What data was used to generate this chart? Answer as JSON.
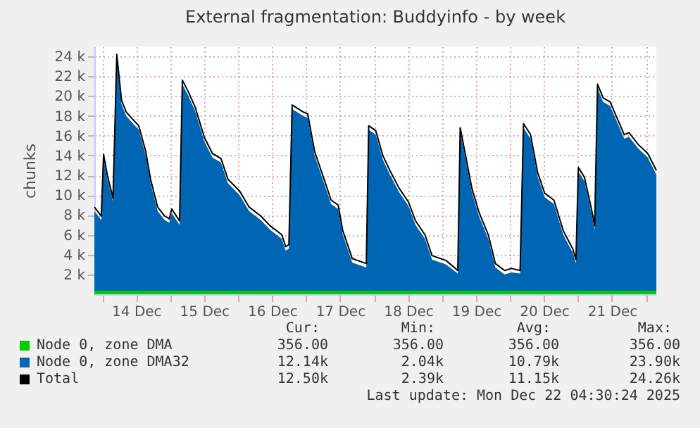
{
  "chart_data": {
    "type": "area",
    "title": "External fragmentation: Buddyinfo - by week",
    "ylabel": "chunks",
    "grid": true,
    "legend": "bottom",
    "x": [
      "2025-12-13T21:15",
      "2025-12-13T23:42",
      "2025-12-14T00:30",
      "2025-12-14T01:50",
      "2025-12-14T03:50",
      "2025-12-14T05:10",
      "2025-12-14T06:50",
      "2025-12-14T08:27",
      "2025-12-14T11:17",
      "2025-12-14T12:55",
      "2025-12-14T15:24",
      "2025-12-14T17:06",
      "2025-12-14T19:35",
      "2025-12-14T22:04",
      "2025-12-14T23:42",
      "2025-12-15T00:33",
      "2025-12-15T03:20",
      "2025-12-15T04:19",
      "2025-12-15T06:18",
      "2025-12-15T08:48",
      "2025-12-15T12:07",
      "2025-12-15T14:57",
      "2025-12-15T17:56",
      "2025-12-15T20:25",
      "2025-12-16T00:33",
      "2025-12-16T03:52",
      "2025-12-16T08:00",
      "2025-12-16T11:20",
      "2025-12-16T15:27",
      "2025-12-16T16:48",
      "2025-12-16T17:56",
      "2025-12-16T19:05",
      "2025-12-16T22:54",
      "2025-12-17T00:33",
      "2025-12-17T03:02",
      "2025-12-17T06:21",
      "2025-12-17T08:50",
      "2025-12-17T11:19",
      "2025-12-17T12:58",
      "2025-12-17T14:39",
      "2025-12-17T16:18",
      "2025-12-17T21:16",
      "2025-12-17T22:07",
      "2025-12-18T00:36",
      "2025-12-18T03:05",
      "2025-12-18T05:34",
      "2025-12-18T08:51",
      "2025-12-18T12:10",
      "2025-12-18T14:39",
      "2025-12-18T17:59",
      "2025-12-18T20:28",
      "2025-12-19T01:26",
      "2025-12-19T05:34",
      "2025-12-19T06:25",
      "2025-12-19T10:32",
      "2025-12-19T13:01",
      "2025-12-19T16:20",
      "2025-12-19T18:49",
      "2025-12-19T22:06",
      "2025-12-20T00:35",
      "2025-12-20T03:34",
      "2025-12-20T04:46",
      "2025-12-20T07:15",
      "2025-12-20T09:44",
      "2025-12-20T12:13",
      "2025-12-20T15:30",
      "2025-12-20T18:49",
      "2025-12-20T22:08",
      "2025-12-20T23:17",
      "2025-12-21T00:08",
      "2025-12-21T02:17",
      "2025-12-21T04:46",
      "2025-12-21T05:54",
      "2025-12-21T06:54",
      "2025-12-21T08:53",
      "2025-12-21T11:22",
      "2025-12-21T16:20",
      "2025-12-21T18:01",
      "2025-12-21T21:19",
      "2025-12-22T00:38",
      "2025-12-22T03:40"
    ],
    "series": [
      {
        "name": "Node 0, zone DMA",
        "color": "#00cc00",
        "values": [
          356,
          356,
          356,
          356,
          356,
          356,
          356,
          356,
          356,
          356,
          356,
          356,
          356,
          356,
          356,
          356,
          356,
          356,
          356,
          356,
          356,
          356,
          356,
          356,
          356,
          356,
          356,
          356,
          356,
          356,
          356,
          356,
          356,
          356,
          356,
          356,
          356,
          356,
          356,
          356,
          356,
          356,
          356,
          356,
          356,
          356,
          356,
          356,
          356,
          356,
          356,
          356,
          356,
          356,
          356,
          356,
          356,
          356,
          356,
          356,
          356,
          356,
          356,
          356,
          356,
          356,
          356,
          356,
          356,
          356,
          356,
          356,
          356,
          356,
          356,
          356,
          356,
          356,
          356,
          356,
          356
        ]
      },
      {
        "name": "Node 0, zone DMA32",
        "color": "#0066b3",
        "values": [
          8400,
          7500,
          13700,
          11600,
          9400,
          23800,
          19200,
          18000,
          17100,
          16600,
          14000,
          11200,
          8400,
          7500,
          7200,
          8200,
          7000,
          21200,
          20100,
          18500,
          15400,
          13800,
          13300,
          11200,
          10000,
          8400,
          7500,
          6500,
          5600,
          4400,
          4600,
          18700,
          18000,
          17800,
          14000,
          11200,
          9100,
          8600,
          6000,
          4600,
          3200,
          2700,
          16600,
          16100,
          13600,
          12100,
          10300,
          8900,
          7000,
          5600,
          3500,
          3000,
          2100,
          16400,
          10300,
          7900,
          5600,
          2700,
          2000,
          2200,
          2100,
          16800,
          15700,
          11900,
          9800,
          9100,
          6000,
          4200,
          3100,
          12400,
          11400,
          8200,
          6500,
          20800,
          19400,
          19000,
          15700,
          15900,
          14700,
          13800,
          12100
        ]
      },
      {
        "name": "Total",
        "type": "line",
        "color": "#000000",
        "values": [
          8800,
          7900,
          14100,
          12000,
          9700,
          24200,
          19600,
          18400,
          17500,
          17000,
          14400,
          11600,
          8800,
          7900,
          7600,
          8600,
          7400,
          21600,
          20500,
          18900,
          15800,
          14200,
          13700,
          11600,
          10400,
          8800,
          7900,
          6900,
          6000,
          4800,
          5000,
          19100,
          18400,
          18200,
          14400,
          11600,
          9500,
          9000,
          6400,
          5000,
          3600,
          3100,
          17000,
          16500,
          14000,
          12500,
          10700,
          9300,
          7400,
          6000,
          3900,
          3400,
          2400,
          16800,
          10700,
          8300,
          6000,
          3100,
          2400,
          2600,
          2400,
          17200,
          16100,
          12300,
          10200,
          9500,
          6400,
          4600,
          3500,
          12800,
          11800,
          8600,
          6900,
          21200,
          19800,
          19400,
          16100,
          16300,
          15100,
          14200,
          12500
        ]
      }
    ],
    "xlim": [
      "2025-12-13T21:15",
      "2025-12-22T03:40"
    ],
    "xticks": [
      {
        "value": "2025-12-14T00:00",
        "label": null
      },
      {
        "value": "2025-12-14T12:00",
        "label": "14 Dec"
      },
      {
        "value": "2025-12-15T00:00",
        "label": null
      },
      {
        "value": "2025-12-15T12:00",
        "label": "15 Dec"
      },
      {
        "value": "2025-12-16T00:00",
        "label": null
      },
      {
        "value": "2025-12-16T12:00",
        "label": "16 Dec"
      },
      {
        "value": "2025-12-17T00:00",
        "label": null
      },
      {
        "value": "2025-12-17T12:00",
        "label": "17 Dec"
      },
      {
        "value": "2025-12-18T00:00",
        "label": null
      },
      {
        "value": "2025-12-18T12:00",
        "label": "18 Dec"
      },
      {
        "value": "2025-12-19T00:00",
        "label": null
      },
      {
        "value": "2025-12-19T12:00",
        "label": "19 Dec"
      },
      {
        "value": "2025-12-20T00:00",
        "label": null
      },
      {
        "value": "2025-12-20T12:00",
        "label": "20 Dec"
      },
      {
        "value": "2025-12-21T00:00",
        "label": null
      },
      {
        "value": "2025-12-21T12:00",
        "label": "21 Dec"
      },
      {
        "value": "2025-12-22T00:00",
        "label": null
      }
    ],
    "ylim": [
      0,
      25000
    ],
    "yticks": [
      {
        "value": 2000,
        "label": "2 k"
      },
      {
        "value": 4000,
        "label": "4 k"
      },
      {
        "value": 6000,
        "label": "6 k"
      },
      {
        "value": 8000,
        "label": "8 k"
      },
      {
        "value": 10000,
        "label": "10 k"
      },
      {
        "value": 12000,
        "label": "12 k"
      },
      {
        "value": 14000,
        "label": "14 k"
      },
      {
        "value": 16000,
        "label": "16 k"
      },
      {
        "value": 18000,
        "label": "18 k"
      },
      {
        "value": 20000,
        "label": "20 k"
      },
      {
        "value": 22000,
        "label": "22 k"
      },
      {
        "value": 24000,
        "label": "24 k"
      }
    ],
    "annotations": [
      "Cur:",
      "Min:",
      "Avg:",
      "Max:",
      "356.00",
      "356.00",
      "356.00",
      "356.00",
      "12.14k",
      "2.04k",
      "10.79k",
      "23.90k",
      "12.50k",
      "2.39k",
      "11.15k",
      "24.26k",
      "Last update: Mon Dec 22 04:30:24 2025"
    ]
  }
}
